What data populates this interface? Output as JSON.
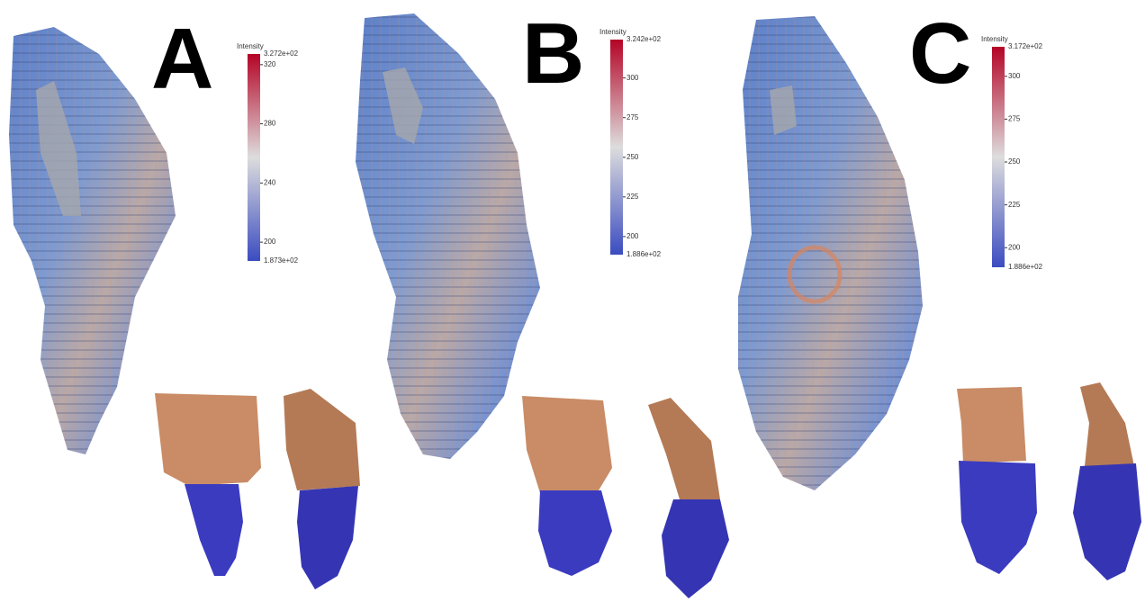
{
  "panels": [
    {
      "letter": "A",
      "colorbar": {
        "title": "Intensity",
        "max": {
          "value": 327.2,
          "label": "3.272e+02"
        },
        "min": {
          "value": 187.3,
          "label": "1.873e+02"
        },
        "ticks": [
          320,
          280,
          240,
          200
        ]
      }
    },
    {
      "letter": "B",
      "colorbar": {
        "title": "Intensity",
        "max": {
          "value": 324.2,
          "label": "3.242e+02"
        },
        "min": {
          "value": 188.6,
          "label": "1.886e+02"
        },
        "ticks": [
          300,
          275,
          250,
          225,
          200
        ]
      }
    },
    {
      "letter": "C",
      "colorbar": {
        "title": "Intensity",
        "max": {
          "value": 317.2,
          "label": "3.172e+02"
        },
        "min": {
          "value": 188.6,
          "label": "1.886e+02"
        },
        "ticks": [
          300,
          275,
          250,
          225,
          200
        ]
      }
    }
  ]
}
